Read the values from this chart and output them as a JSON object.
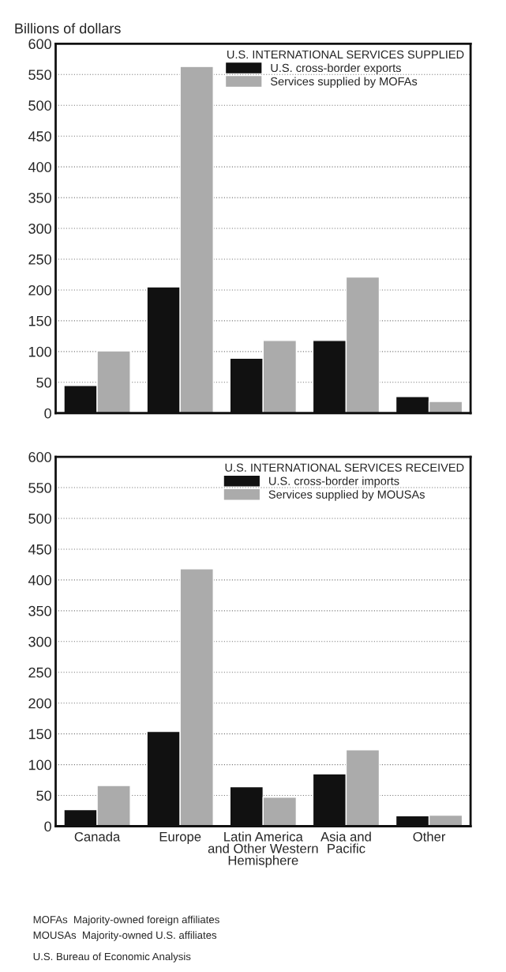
{
  "chart_data": [
    {
      "type": "bar",
      "ylabel": "Billions of dollars",
      "legend_title": "U.S. INTERNATIONAL SERVICES SUPPLIED",
      "categories": [
        null,
        null,
        null,
        null,
        null
      ],
      "series": [
        {
          "name": "U.S. cross-border exports",
          "color": "#111111",
          "values": [
            45,
            205,
            89,
            118,
            27
          ]
        },
        {
          "name": "Services supplied by MOFAs",
          "color": "#ababab",
          "values": [
            101,
            563,
            118,
            221,
            19
          ]
        }
      ],
      "ylim": [
        0,
        600
      ],
      "yticks": [
        0,
        50,
        100,
        150,
        200,
        250,
        300,
        350,
        400,
        450,
        500,
        550,
        600
      ],
      "grid": "y",
      "legend": "top right"
    },
    {
      "type": "bar",
      "legend_title": "U.S. INTERNATIONAL SERVICES RECEIVED",
      "categories": [
        "Canada",
        "Europe",
        "Latin America\nand Other Western\nHemisphere",
        "Asia and\nPacific",
        "Other"
      ],
      "series": [
        {
          "name": "U.S. cross-border imports",
          "color": "#111111",
          "values": [
            27,
            154,
            64,
            85,
            17
          ]
        },
        {
          "name": "Services supplied by MOUSAs",
          "color": "#ababab",
          "values": [
            66,
            418,
            47,
            124,
            18
          ]
        }
      ],
      "ylim": [
        0,
        600
      ],
      "yticks": [
        0,
        50,
        100,
        150,
        200,
        250,
        300,
        350,
        400,
        450,
        500,
        550,
        600
      ],
      "grid": "y",
      "legend": "top right",
      "annotations": [
        "MOFAs  Majority-owned foreign affiliates",
        "MOUSAs  Majority-owned U.S. affiliates",
        "U.S. Bureau of Economic Analysis"
      ]
    }
  ]
}
